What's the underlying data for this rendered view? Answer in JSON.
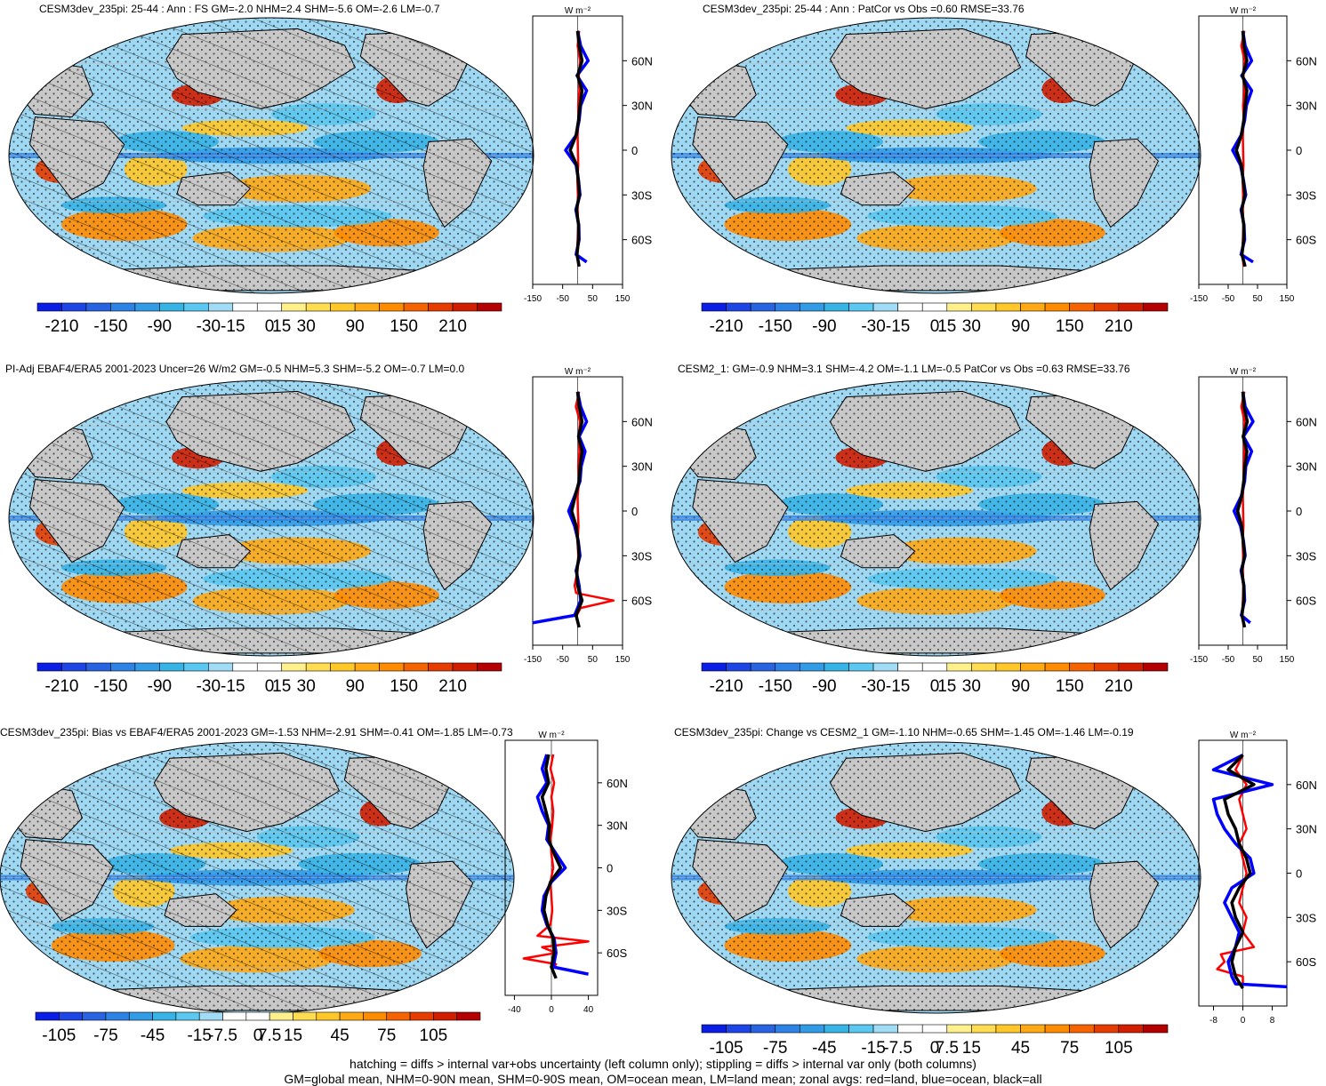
{
  "footer": {
    "line1": "hatching = diffs > internal var+obs uncertainty (left column only); stippling = diffs > internal var only (both columns)",
    "line2": "GM=global mean, NHM=0-90N mean, SHM=0-90S mean, OM=ocean mean, LM=land mean; zonal avgs: red=land, blue=ocean, black=all"
  },
  "colors": {
    "land": "#c8c8c8",
    "ocean_mask": "#ffffff",
    "zonal_land": "#ff0000",
    "zonal_ocean": "#0000ff",
    "zonal_all": "#000000",
    "colorbar": [
      "#0a1ee6",
      "#1e46e6",
      "#2864e1",
      "#2d82e6",
      "#329be6",
      "#37b4e6",
      "#5ac8f0",
      "#a0dcf5",
      "#ffffff",
      "#ffffff",
      "#fff08c",
      "#ffdc50",
      "#ffc828",
      "#ffaa14",
      "#ff8c00",
      "#f56400",
      "#e63c00",
      "#d21e00",
      "#b40000"
    ]
  },
  "panels": [
    {
      "title": "CESM3dev_235pi: 25-44 : Ann : FS GM=-2.0 NHM=2.4 SHM=-5.6 OM=-2.6 LM=-0.7",
      "colorbar_labels": [
        "-210",
        "-150",
        "-90",
        "-30",
        "-15",
        "0",
        "15",
        "30",
        "90",
        "150",
        "210"
      ],
      "zonal_units": "W m⁻²",
      "zonal_xticks": [
        "-150",
        "-50",
        "50",
        "150"
      ],
      "zonal_xlim": [
        -150,
        150
      ],
      "lat_labels": [
        "60N",
        "30N",
        "0",
        "30S",
        "60S"
      ],
      "hatching": true,
      "chart_data": {
        "type": "line",
        "x_is_value": true,
        "series": [
          {
            "name": "land",
            "lat": [
              80,
              70,
              60,
              50,
              40,
              30,
              20,
              10,
              0,
              -10,
              -20,
              -30,
              -40,
              -50,
              -60,
              -70,
              -78
            ],
            "values": [
              5,
              0,
              8,
              4,
              6,
              2,
              3,
              0,
              1,
              2,
              -1,
              1,
              0,
              2,
              0,
              -2,
              3
            ]
          },
          {
            "name": "ocean",
            "lat": [
              80,
              70,
              60,
              50,
              40,
              30,
              20,
              10,
              0,
              -10,
              -20,
              -30,
              -40,
              -50,
              -60,
              -70,
              -75
            ],
            "values": [
              0,
              10,
              35,
              -2,
              30,
              10,
              5,
              -5,
              -40,
              -5,
              3,
              8,
              -6,
              4,
              5,
              -5,
              30
            ]
          },
          {
            "name": "all",
            "lat": [
              80,
              70,
              60,
              50,
              40,
              30,
              20,
              10,
              0,
              -10,
              -20,
              -30,
              -40,
              -50,
              -60,
              -70,
              -78
            ],
            "values": [
              0,
              5,
              15,
              0,
              15,
              8,
              3,
              -5,
              -25,
              -3,
              2,
              6,
              -4,
              3,
              3,
              -2,
              5
            ]
          }
        ]
      }
    },
    {
      "title": "CESM3dev_235pi: 25-44 : Ann : PatCor vs Obs =0.60 RMSE=33.76",
      "colorbar_labels": [
        "-210",
        "-150",
        "-90",
        "-30",
        "-15",
        "0",
        "15",
        "30",
        "90",
        "150",
        "210"
      ],
      "zonal_units": "W m⁻²",
      "zonal_xticks": [
        "-150",
        "-50",
        "50",
        "150"
      ],
      "zonal_xlim": [
        -150,
        150
      ],
      "lat_labels": [
        "60N",
        "30N",
        "0",
        "30S",
        "60S"
      ],
      "hatching": false,
      "chart_data": {
        "type": "line",
        "x_is_value": true,
        "series": [
          {
            "name": "land",
            "lat": [
              80,
              70,
              60,
              50,
              40,
              30,
              20,
              10,
              0,
              -10,
              -20,
              -30,
              -40,
              -50,
              -60,
              -70,
              -78
            ],
            "values": [
              5,
              -5,
              6,
              2,
              5,
              1,
              3,
              0,
              1,
              2,
              -1,
              1,
              0,
              2,
              0,
              -2,
              3
            ]
          },
          {
            "name": "ocean",
            "lat": [
              80,
              70,
              60,
              50,
              40,
              30,
              20,
              10,
              0,
              -10,
              -20,
              -30,
              -40,
              -50,
              -60,
              -70,
              -75
            ],
            "values": [
              0,
              8,
              30,
              -4,
              30,
              12,
              6,
              -6,
              -35,
              -8,
              2,
              10,
              -6,
              4,
              6,
              -6,
              35
            ]
          },
          {
            "name": "all",
            "lat": [
              80,
              70,
              60,
              50,
              40,
              30,
              20,
              10,
              0,
              -10,
              -20,
              -30,
              -40,
              -50,
              -60,
              -70,
              -78
            ],
            "values": [
              0,
              4,
              14,
              -1,
              14,
              8,
              3,
              -5,
              -22,
              -5,
              1,
              7,
              -4,
              3,
              3,
              -3,
              8
            ]
          }
        ]
      }
    },
    {
      "title": "PI-Adj EBAF4/ERA5 2001-2023 Uncer=26 W/m2 GM=-0.5 NHM=5.3 SHM=-5.2 OM=-0.7 LM=0.0",
      "colorbar_labels": [
        "-210",
        "-150",
        "-90",
        "-30",
        "-15",
        "0",
        "15",
        "30",
        "90",
        "150",
        "210"
      ],
      "zonal_units": "W m⁻²",
      "zonal_xticks": [
        "-150",
        "-50",
        "50",
        "150"
      ],
      "zonal_xlim": [
        -150,
        150
      ],
      "lat_labels": [
        "60N",
        "30N",
        "0",
        "30S",
        "60S"
      ],
      "hatching": true,
      "chart_data": {
        "type": "line",
        "x_is_value": true,
        "series": [
          {
            "name": "land",
            "lat": [
              80,
              70,
              60,
              50,
              40,
              30,
              20,
              10,
              0,
              -10,
              -20,
              -30,
              -40,
              -50,
              -55,
              -60,
              -65,
              -70
            ],
            "values": [
              5,
              -6,
              8,
              4,
              6,
              2,
              5,
              0,
              1,
              3,
              0,
              2,
              0,
              -10,
              -5,
              120,
              10,
              -3
            ]
          },
          {
            "name": "ocean",
            "lat": [
              80,
              70,
              60,
              50,
              40,
              30,
              20,
              10,
              0,
              -10,
              -20,
              -30,
              -40,
              -50,
              -60,
              -70,
              -75
            ],
            "values": [
              0,
              10,
              30,
              5,
              25,
              12,
              8,
              -10,
              -30,
              -10,
              2,
              8,
              -5,
              5,
              10,
              -10,
              -150
            ]
          },
          {
            "name": "all",
            "lat": [
              80,
              70,
              60,
              50,
              40,
              30,
              20,
              10,
              0,
              -10,
              -20,
              -30,
              -40,
              -50,
              -60,
              -70,
              -78
            ],
            "values": [
              0,
              5,
              15,
              3,
              15,
              8,
              5,
              -8,
              -20,
              -5,
              1,
              5,
              -3,
              0,
              15,
              -5,
              5
            ]
          }
        ]
      }
    },
    {
      "title": "CESM2_1: GM=-0.9 NHM=3.1 SHM=-4.2 OM=-1.1 LM=-0.5 PatCor vs Obs =0.63 RMSE=33.76",
      "colorbar_labels": [
        "-210",
        "-150",
        "-90",
        "-30",
        "-15",
        "0",
        "15",
        "30",
        "90",
        "150",
        "210"
      ],
      "zonal_units": "W m⁻²",
      "zonal_xticks": [
        "-150",
        "-50",
        "50",
        "150"
      ],
      "zonal_xlim": [
        -150,
        150
      ],
      "lat_labels": [
        "60N",
        "30N",
        "0",
        "30S",
        "60S"
      ],
      "hatching": false,
      "chart_data": {
        "type": "line",
        "x_is_value": true,
        "series": [
          {
            "name": "land",
            "lat": [
              80,
              70,
              60,
              50,
              40,
              30,
              20,
              10,
              0,
              -10,
              -20,
              -30,
              -40,
              -50,
              -60,
              -70,
              -78
            ],
            "values": [
              5,
              -5,
              6,
              3,
              5,
              2,
              3,
              0,
              1,
              2,
              -1,
              1,
              0,
              2,
              0,
              -2,
              3
            ]
          },
          {
            "name": "ocean",
            "lat": [
              80,
              70,
              60,
              50,
              40,
              30,
              20,
              10,
              0,
              -10,
              -20,
              -30,
              -40,
              -50,
              -60,
              -70,
              -75
            ],
            "values": [
              0,
              8,
              35,
              2,
              30,
              10,
              6,
              -5,
              -30,
              -8,
              2,
              8,
              -6,
              4,
              6,
              -5,
              25
            ]
          },
          {
            "name": "all",
            "lat": [
              80,
              70,
              60,
              50,
              40,
              30,
              20,
              10,
              0,
              -10,
              -20,
              -30,
              -40,
              -50,
              -60,
              -70,
              -78
            ],
            "values": [
              0,
              4,
              15,
              1,
              14,
              7,
              3,
              -4,
              -18,
              -4,
              1,
              6,
              -4,
              3,
              3,
              -3,
              6
            ]
          }
        ]
      }
    },
    {
      "title": "CESM3dev_235pi: Bias vs EBAF4/ERA5 2001-2023 GM=-1.53 NHM=-2.91 SHM=-0.41 OM=-1.85 LM=-0.73",
      "colorbar_labels": [
        "-105",
        "-75",
        "-45",
        "-15",
        "-7.5",
        "0",
        "7.5",
        "15",
        "45",
        "75",
        "105"
      ],
      "zonal_units": "W m⁻²",
      "zonal_xticks": [
        "-40",
        "0",
        "40"
      ],
      "zonal_xlim": [
        -50,
        50
      ],
      "lat_labels": [
        "60N",
        "30N",
        "0",
        "30S",
        "60S"
      ],
      "hatching": true,
      "chart_data": {
        "type": "line",
        "x_is_value": true,
        "series": [
          {
            "name": "land",
            "lat": [
              80,
              70,
              60,
              50,
              40,
              30,
              20,
              10,
              0,
              -10,
              -20,
              -30,
              -40,
              -48,
              -52,
              -56,
              -60,
              -64,
              -68,
              -72
            ],
            "values": [
              2,
              -1,
              3,
              0,
              2,
              1,
              -1,
              0,
              2,
              -1,
              0,
              1,
              -1,
              -15,
              40,
              -10,
              5,
              -30,
              5,
              0
            ]
          },
          {
            "name": "ocean",
            "lat": [
              80,
              70,
              60,
              50,
              40,
              30,
              20,
              10,
              0,
              -10,
              -20,
              -30,
              -40,
              -50,
              -60,
              -70,
              -75
            ],
            "values": [
              -5,
              -10,
              -5,
              -15,
              -10,
              -3,
              -5,
              5,
              15,
              0,
              -8,
              -10,
              -5,
              3,
              5,
              2,
              40
            ]
          },
          {
            "name": "all",
            "lat": [
              80,
              70,
              60,
              50,
              40,
              30,
              20,
              10,
              0,
              -10,
              -20,
              -30,
              -40,
              -50,
              -60,
              -70,
              -78
            ],
            "values": [
              -3,
              -6,
              -3,
              -10,
              -6,
              -2,
              -3,
              3,
              10,
              -1,
              -6,
              -8,
              -4,
              2,
              3,
              0,
              5
            ]
          }
        ]
      }
    },
    {
      "title": "CESM3dev_235pi: Change vs CESM2_1 GM=-1.10 NHM=-0.65 SHM=-1.45 OM=-1.46 LM=-0.19",
      "colorbar_labels": [
        "-105",
        "-75",
        "-45",
        "-15",
        "-7.5",
        "0",
        "7.5",
        "15",
        "45",
        "75",
        "105"
      ],
      "zonal_units": "W m⁻²",
      "zonal_xticks": [
        "-8",
        "0",
        "8"
      ],
      "zonal_xlim": [
        -12,
        12
      ],
      "lat_labels": [
        "60N",
        "30N",
        "0",
        "30S",
        "60S"
      ],
      "hatching": false,
      "chart_data": {
        "type": "line",
        "x_is_value": true,
        "series": [
          {
            "name": "land",
            "lat": [
              80,
              70,
              60,
              50,
              40,
              30,
              20,
              10,
              0,
              -10,
              -20,
              -30,
              -40,
              -50,
              -55,
              -60,
              -65,
              -70,
              -75
            ],
            "values": [
              0,
              -2,
              1,
              -1,
              0,
              1,
              -1,
              0,
              1,
              0,
              -1,
              1,
              0,
              3,
              -6,
              -5,
              -7,
              0,
              0
            ]
          },
          {
            "name": "ocean",
            "lat": [
              80,
              70,
              60,
              50,
              40,
              30,
              20,
              10,
              0,
              -10,
              -20,
              -30,
              -40,
              -50,
              -60,
              -70,
              -75,
              -77
            ],
            "values": [
              0,
              -8,
              8,
              -8,
              -7,
              -5,
              -2,
              2,
              3,
              -3,
              -5,
              -3,
              -1,
              -2,
              -4,
              -3,
              -2,
              12
            ]
          },
          {
            "name": "all",
            "lat": [
              80,
              70,
              60,
              50,
              40,
              30,
              20,
              10,
              0,
              -10,
              -20,
              -30,
              -40,
              -50,
              -60,
              -70,
              -78
            ],
            "values": [
              0,
              -4,
              3,
              -5,
              -4,
              -2,
              -1,
              1,
              2,
              -1,
              -3,
              -2,
              0,
              -2,
              -3,
              -2,
              0
            ]
          }
        ]
      }
    }
  ]
}
